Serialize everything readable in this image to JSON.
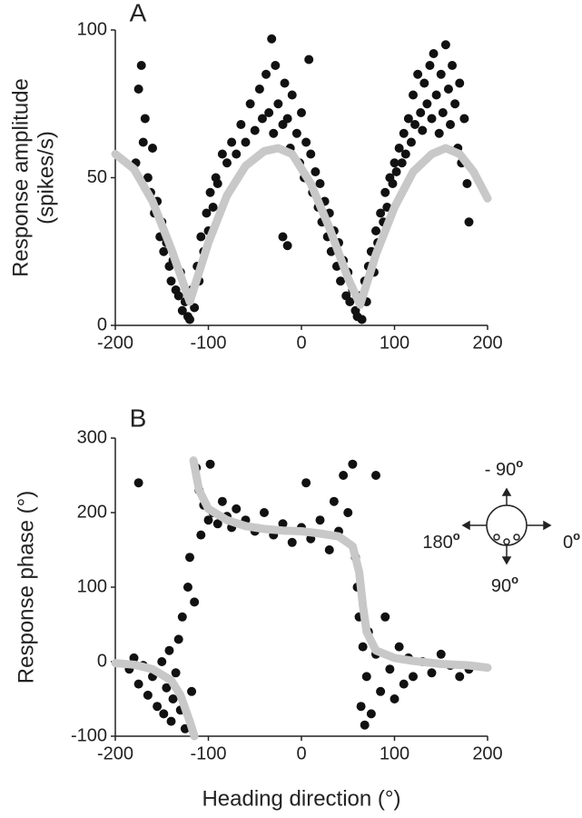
{
  "chart_data": [
    {
      "type": "scatter",
      "panel_label": "A",
      "ylabel": [
        "Response  amplitude",
        "(spikes/s)"
      ],
      "xlim": [
        -200,
        200
      ],
      "xticks": [
        -200,
        -100,
        0,
        100,
        200
      ],
      "ylim": [
        0,
        100
      ],
      "yticks": [
        0,
        50,
        100
      ],
      "series": [
        {
          "type": "scatter",
          "color": "#111111",
          "x": [
            -178,
            -175,
            -172,
            -170,
            -168,
            -165,
            -162,
            -160,
            -158,
            -155,
            -152,
            -150,
            -148,
            -145,
            -142,
            -140,
            -138,
            -135,
            -132,
            -130,
            -128,
            -125,
            -122,
            -120,
            -118,
            -115,
            -112,
            -110,
            -108,
            -105,
            -102,
            -100,
            -98,
            -95,
            -92,
            -90,
            -85,
            -80,
            -75,
            -70,
            -65,
            -60,
            -55,
            -50,
            -45,
            -42,
            -38,
            -35,
            -32,
            -30,
            -28,
            -25,
            -20,
            -20,
            -18,
            -15,
            -15,
            -12,
            -10,
            -5,
            -2,
            0,
            3,
            5,
            8,
            10,
            12,
            15,
            18,
            20,
            22,
            25,
            28,
            30,
            32,
            35,
            38,
            40,
            42,
            45,
            48,
            50,
            52,
            55,
            58,
            60,
            62,
            65,
            68,
            70,
            72,
            75,
            78,
            80,
            82,
            85,
            88,
            90,
            92,
            95,
            98,
            100,
            102,
            105,
            108,
            110,
            112,
            115,
            118,
            120,
            122,
            125,
            128,
            130,
            132,
            135,
            138,
            140,
            142,
            145,
            148,
            150,
            152,
            155,
            158,
            160,
            162,
            165,
            168,
            170,
            172,
            175,
            178,
            180
          ],
          "values": [
            55,
            80,
            88,
            62,
            70,
            50,
            45,
            60,
            38,
            42,
            30,
            35,
            25,
            28,
            20,
            15,
            22,
            12,
            10,
            18,
            5,
            8,
            3,
            2,
            12,
            6,
            20,
            15,
            30,
            25,
            38,
            32,
            45,
            40,
            50,
            48,
            58,
            55,
            62,
            58,
            68,
            62,
            75,
            66,
            80,
            70,
            85,
            72,
            97,
            65,
            88,
            75,
            68,
            30,
            82,
            70,
            27,
            60,
            78,
            65,
            55,
            72,
            50,
            62,
            90,
            58,
            45,
            52,
            40,
            48,
            35,
            42,
            30,
            38,
            25,
            32,
            20,
            28,
            15,
            22,
            10,
            18,
            8,
            12,
            5,
            3,
            10,
            2,
            15,
            8,
            20,
            25,
            18,
            32,
            28,
            38,
            35,
            45,
            40,
            50,
            48,
            55,
            52,
            60,
            55,
            65,
            58,
            70,
            62,
            78,
            68,
            85,
            72,
            66,
            82,
            75,
            88,
            70,
            92,
            78,
            65,
            85,
            72,
            95,
            80,
            68,
            88,
            75,
            60,
            82,
            55,
            70,
            48,
            35
          ]
        },
        {
          "type": "line",
          "color": "#c8c8c8",
          "x": [
            -200,
            -180,
            -160,
            -140,
            -120,
            -100,
            -80,
            -60,
            -40,
            -25,
            -10,
            10,
            30,
            50,
            63,
            80,
            100,
            120,
            140,
            155,
            170,
            185,
            200
          ],
          "values": [
            58,
            53,
            42,
            26,
            8,
            28,
            44,
            54,
            59,
            60,
            58,
            48,
            33,
            16,
            7,
            24,
            40,
            52,
            58,
            60,
            58,
            52,
            43
          ]
        }
      ]
    },
    {
      "type": "scatter",
      "panel_label": "B",
      "xlabel": "Heading direction (°)",
      "ylabel": [
        "Response phase (°)"
      ],
      "xlim": [
        -200,
        200
      ],
      "xticks": [
        -200,
        -100,
        0,
        100,
        200
      ],
      "ylim": [
        -100,
        300
      ],
      "yticks": [
        -100,
        0,
        100,
        200,
        300
      ],
      "inset_labels": {
        "up": {
          "text": "- 90",
          "sup": "o"
        },
        "left": {
          "text": "180",
          "sup": "o"
        },
        "right": {
          "text": "0",
          "sup": "o"
        },
        "down": {
          "text": "90",
          "sup": "o"
        }
      },
      "series": [
        {
          "type": "scatter",
          "color": "#111111",
          "x": [
            -185,
            -180,
            -175,
            -175,
            -170,
            -165,
            -160,
            -155,
            -150,
            -148,
            -145,
            -142,
            -140,
            -138,
            -135,
            -132,
            -130,
            -128,
            -125,
            -122,
            -120,
            -118,
            -115,
            -113,
            -110,
            -108,
            -105,
            -100,
            -98,
            -95,
            -90,
            -85,
            -80,
            -75,
            -70,
            -60,
            -50,
            -40,
            -30,
            -20,
            -10,
            0,
            5,
            10,
            20,
            30,
            35,
            40,
            45,
            50,
            55,
            58,
            60,
            62,
            64,
            66,
            68,
            70,
            72,
            75,
            80,
            80,
            85,
            90,
            95,
            100,
            105,
            110,
            115,
            120,
            130,
            140,
            150,
            160,
            170,
            180
          ],
          "values": [
            -10,
            5,
            -30,
            240,
            -5,
            -45,
            -20,
            -60,
            0,
            -70,
            -35,
            15,
            -80,
            -50,
            -15,
            30,
            -65,
            60,
            -90,
            100,
            140,
            -40,
            80,
            260,
            230,
            170,
            210,
            190,
            265,
            200,
            185,
            215,
            195,
            180,
            205,
            190,
            175,
            200,
            170,
            185,
            160,
            180,
            240,
            165,
            190,
            150,
            215,
            175,
            250,
            200,
            265,
            140,
            100,
            60,
            -60,
            20,
            -85,
            -20,
            40,
            -70,
            10,
            250,
            -40,
            60,
            -10,
            -50,
            20,
            -30,
            5,
            -20,
            0,
            -15,
            10,
            -5,
            -20,
            -10
          ]
        },
        {
          "type": "line",
          "color": "#c8c8c8",
          "x": [
            -200,
            -180,
            -160,
            -140,
            -130,
            -120,
            -115,
            -116,
            -116,
            -110,
            -100,
            -80,
            -60,
            -40,
            -20,
            0,
            20,
            40,
            55,
            62,
            66,
            70,
            80,
            100,
            120,
            150,
            180,
            200
          ],
          "values": [
            -2,
            -4,
            -10,
            -25,
            -45,
            -80,
            -100,
            null,
            270,
            230,
            205,
            190,
            182,
            178,
            176,
            175,
            172,
            168,
            155,
            120,
            75,
            40,
            15,
            5,
            1,
            -3,
            -5,
            -8
          ]
        }
      ]
    }
  ]
}
